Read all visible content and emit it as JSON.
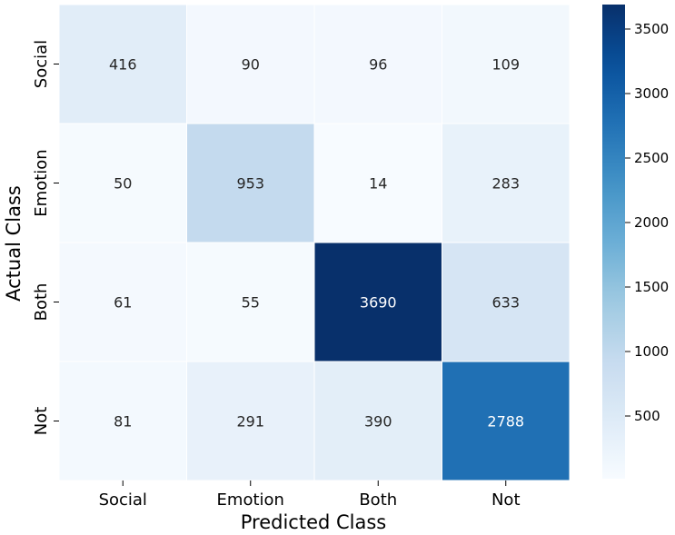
{
  "chart_data": {
    "type": "heatmap",
    "title": "",
    "xlabel": "Predicted Class",
    "ylabel": "Actual Class",
    "x_categories": [
      "Social",
      "Emotion",
      "Both",
      "Not"
    ],
    "y_categories": [
      "Social",
      "Emotion",
      "Both",
      "Not"
    ],
    "values": [
      [
        416,
        90,
        96,
        109
      ],
      [
        50,
        953,
        14,
        283
      ],
      [
        61,
        55,
        3690,
        633
      ],
      [
        81,
        291,
        390,
        2788
      ]
    ],
    "colormap": "Blues",
    "vmin": 14,
    "vmax": 3690,
    "colorbar_ticks": [
      500,
      1000,
      1500,
      2000,
      2500,
      3000,
      3500
    ],
    "grid_lines": "white",
    "legend": "colorbar-right"
  }
}
